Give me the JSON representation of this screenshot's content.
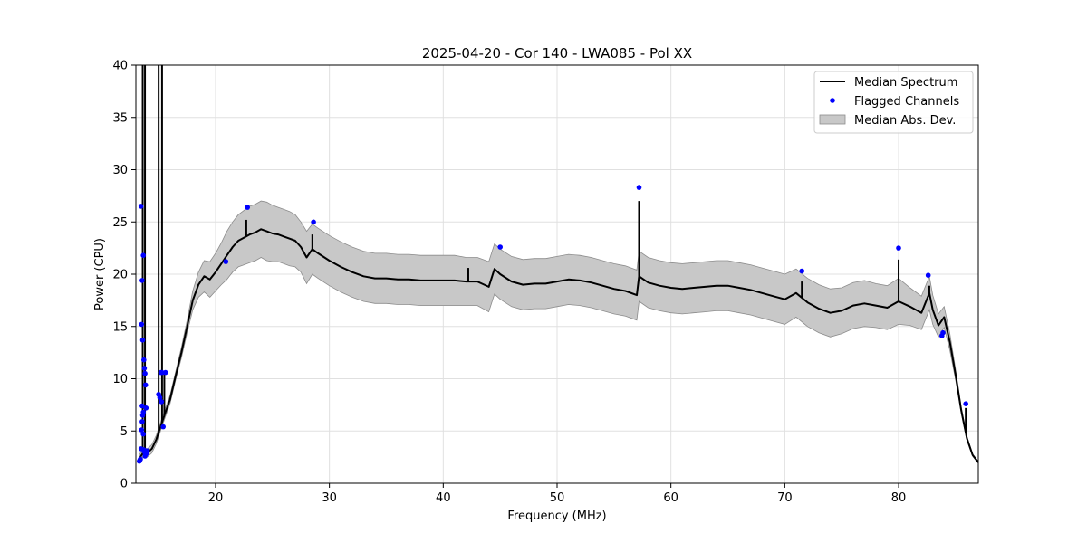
{
  "chart_data": {
    "type": "line",
    "title": "2025-04-20 - Cor 140 - LWA085 - Pol XX",
    "xlabel": "Frequency (MHz)",
    "ylabel": "Power (CPU)",
    "xlim": [
      13,
      87
    ],
    "ylim": [
      0,
      40
    ],
    "xticks": [
      20,
      30,
      40,
      50,
      60,
      70,
      80
    ],
    "yticks": [
      0,
      5,
      10,
      15,
      20,
      25,
      30,
      35,
      40
    ],
    "grid": true,
    "legend_position": "top-right",
    "legend": [
      "Median Spectrum",
      "Flagged Channels",
      "Median Abs. Dev."
    ],
    "colors": {
      "line": "#000000",
      "flag": "#0000ff",
      "band_fill": "#c8c8c8",
      "band_edge": "#8c8c8c",
      "grid": "#e0e0e0"
    },
    "series": [
      {
        "name": "Median Spectrum",
        "x": [
          13.3,
          13.5,
          13.7,
          14.0,
          14.4,
          14.8,
          15.2,
          15.6,
          16.0,
          16.5,
          17.0,
          17.5,
          18.0,
          18.5,
          19.0,
          19.5,
          20.0,
          20.5,
          21.0,
          21.5,
          22.0,
          22.5,
          23.0,
          23.5,
          24.0,
          24.5,
          25.0,
          25.5,
          26.0,
          26.5,
          27.0,
          27.5,
          28.0,
          28.5,
          29.0,
          30.0,
          31.0,
          32.0,
          33.0,
          34.0,
          35.0,
          36.0,
          37.0,
          38.0,
          39.0,
          40.0,
          41.0,
          42.0,
          43.0,
          44.0,
          44.5,
          45.0,
          46.0,
          47.0,
          48.0,
          49.0,
          50.0,
          51.0,
          52.0,
          53.0,
          54.0,
          55.0,
          56.0,
          57.0,
          57.2,
          58.0,
          59.0,
          60.0,
          61.0,
          62.0,
          63.0,
          64.0,
          65.0,
          66.0,
          67.0,
          68.0,
          69.0,
          70.0,
          71.0,
          72.0,
          73.0,
          74.0,
          75.0,
          76.0,
          77.0,
          78.0,
          79.0,
          80.0,
          81.0,
          82.0,
          82.7,
          83.0,
          83.5,
          84.0,
          84.5,
          85.0,
          85.5,
          86.0,
          86.5,
          87.0
        ],
        "median": [
          2.3,
          2.7,
          3.0,
          2.9,
          3.3,
          4.2,
          5.5,
          6.8,
          8.0,
          10.3,
          12.5,
          15.0,
          17.5,
          19.0,
          19.8,
          19.5,
          20.2,
          21.0,
          21.8,
          22.6,
          23.2,
          23.5,
          23.8,
          24.0,
          24.3,
          24.1,
          23.9,
          23.8,
          23.6,
          23.4,
          23.2,
          22.6,
          21.6,
          22.4,
          22.0,
          21.3,
          20.7,
          20.2,
          19.8,
          19.6,
          19.6,
          19.5,
          19.5,
          19.4,
          19.4,
          19.4,
          19.4,
          19.3,
          19.3,
          18.8,
          20.5,
          20.0,
          19.3,
          19.0,
          19.1,
          19.1,
          19.3,
          19.5,
          19.4,
          19.2,
          18.9,
          18.6,
          18.4,
          18.0,
          19.8,
          19.2,
          18.9,
          18.7,
          18.6,
          18.7,
          18.8,
          18.9,
          18.9,
          18.7,
          18.5,
          18.2,
          17.9,
          17.6,
          18.2,
          17.3,
          16.7,
          16.3,
          16.5,
          17.0,
          17.2,
          17.0,
          16.8,
          17.4,
          16.9,
          16.3,
          18.2,
          16.6,
          15.1,
          15.9,
          13.5,
          10.4,
          7.0,
          4.3,
          2.7,
          2.0
        ],
        "mad_upper": [
          2.7,
          3.1,
          3.4,
          3.3,
          3.7,
          4.6,
          5.9,
          7.2,
          8.4,
          10.7,
          13.0,
          15.6,
          18.4,
          20.2,
          21.3,
          21.2,
          22.0,
          23.0,
          24.1,
          25.0,
          25.7,
          26.1,
          26.5,
          26.7,
          27.0,
          26.9,
          26.6,
          26.4,
          26.2,
          26.0,
          25.7,
          25.0,
          24.1,
          24.8,
          24.4,
          23.7,
          23.1,
          22.6,
          22.2,
          22.0,
          22.0,
          21.9,
          21.9,
          21.8,
          21.8,
          21.8,
          21.8,
          21.6,
          21.6,
          21.2,
          22.9,
          22.4,
          21.7,
          21.4,
          21.5,
          21.5,
          21.7,
          21.9,
          21.8,
          21.6,
          21.3,
          21.0,
          20.8,
          20.4,
          22.2,
          21.6,
          21.3,
          21.1,
          21.0,
          21.1,
          21.2,
          21.3,
          21.3,
          21.1,
          20.9,
          20.6,
          20.3,
          20.0,
          20.5,
          19.6,
          19.0,
          18.6,
          18.7,
          19.2,
          19.4,
          19.1,
          18.9,
          19.6,
          18.7,
          17.9,
          19.8,
          18.0,
          16.2,
          16.9,
          14.3,
          10.9,
          7.3,
          4.5,
          2.8,
          2.1
        ],
        "mad_lower": [
          1.9,
          2.3,
          2.6,
          2.5,
          2.9,
          3.8,
          5.1,
          6.4,
          7.6,
          9.9,
          12.0,
          14.4,
          16.6,
          17.8,
          18.3,
          17.8,
          18.4,
          19.0,
          19.5,
          20.2,
          20.7,
          20.9,
          21.1,
          21.3,
          21.6,
          21.3,
          21.2,
          21.2,
          21.0,
          20.8,
          20.7,
          20.2,
          19.1,
          20.0,
          19.6,
          18.9,
          18.3,
          17.8,
          17.4,
          17.2,
          17.2,
          17.1,
          17.1,
          17.0,
          17.0,
          17.0,
          17.0,
          17.0,
          17.0,
          16.4,
          18.1,
          17.6,
          16.9,
          16.6,
          16.7,
          16.7,
          16.9,
          17.1,
          17.0,
          16.8,
          16.5,
          16.2,
          16.0,
          15.6,
          17.4,
          16.8,
          16.5,
          16.3,
          16.2,
          16.3,
          16.4,
          16.5,
          16.5,
          16.3,
          16.1,
          15.8,
          15.5,
          15.2,
          15.9,
          15.0,
          14.4,
          14.0,
          14.3,
          14.8,
          15.0,
          14.9,
          14.7,
          15.2,
          15.1,
          14.7,
          16.6,
          15.2,
          14.0,
          14.9,
          12.7,
          9.9,
          6.7,
          4.1,
          2.6,
          1.9
        ]
      }
    ],
    "spikes": [
      {
        "x": 13.6,
        "y": 40.0
      },
      {
        "x": 13.8,
        "y": 40.0
      },
      {
        "x": 15.0,
        "y": 40.0
      },
      {
        "x": 15.3,
        "y": 40.0
      },
      {
        "x": 15.5,
        "y": 10.6
      },
      {
        "x": 22.7,
        "y": 25.2
      },
      {
        "x": 28.5,
        "y": 23.8
      },
      {
        "x": 42.2,
        "y": 20.6
      },
      {
        "x": 57.2,
        "y": 27.0
      },
      {
        "x": 71.5,
        "y": 19.3
      },
      {
        "x": 80.0,
        "y": 21.4
      },
      {
        "x": 82.7,
        "y": 18.9
      },
      {
        "x": 85.9,
        "y": 7.2
      }
    ],
    "flagged_channels": {
      "x": [
        13.3,
        13.4,
        13.45,
        13.5,
        13.55,
        13.6,
        13.65,
        13.7,
        13.75,
        13.8,
        13.85,
        13.9,
        13.5,
        13.55,
        13.6,
        13.65,
        13.7,
        13.75,
        13.8,
        13.9,
        14.0,
        15.0,
        15.1,
        15.2,
        15.3,
        15.4,
        15.6,
        15.25,
        20.9,
        22.8,
        28.6,
        45.0,
        57.2,
        71.5,
        80.0,
        82.6,
        83.8,
        83.9,
        85.9,
        13.35,
        13.45,
        13.55,
        13.65
      ],
      "y": [
        2.1,
        2.3,
        26.5,
        15.2,
        19.4,
        13.7,
        21.8,
        11.8,
        11.0,
        10.5,
        9.4,
        7.2,
        5.1,
        5.9,
        6.5,
        6.8,
        3.2,
        3.0,
        2.6,
        2.8,
        3.1,
        8.5,
        8.2,
        10.6,
        10.6,
        5.4,
        10.6,
        7.8,
        21.2,
        26.4,
        25.0,
        22.6,
        28.3,
        20.3,
        22.5,
        19.9,
        14.1,
        14.4,
        7.6,
        2.2,
        3.3,
        7.4,
        4.7
      ]
    }
  }
}
